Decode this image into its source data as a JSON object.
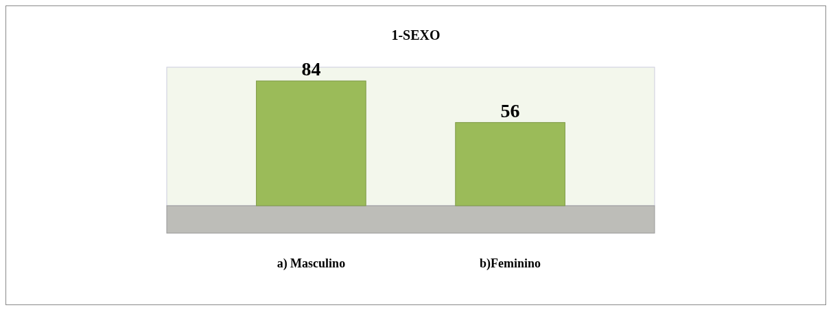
{
  "chart_data": {
    "type": "bar",
    "title": "1-SEXO",
    "categories": [
      "a) Masculino",
      "b)Feminino"
    ],
    "values": [
      84,
      56
    ],
    "color": "#9bbb59",
    "data_labels": true
  }
}
